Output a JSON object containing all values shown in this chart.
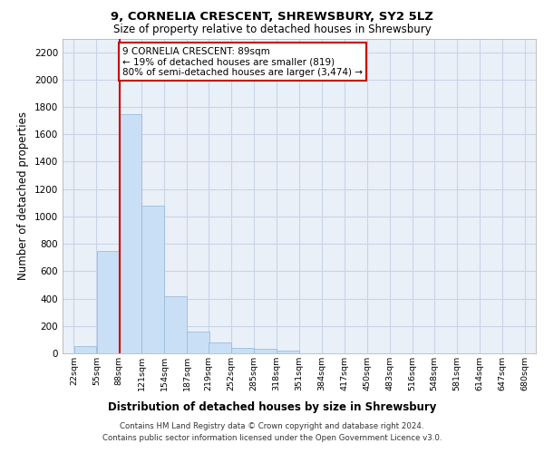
{
  "title": "9, CORNELIA CRESCENT, SHREWSBURY, SY2 5LZ",
  "subtitle": "Size of property relative to detached houses in Shrewsbury",
  "xlabel": "Distribution of detached houses by size in Shrewsbury",
  "ylabel": "Number of detached properties",
  "bar_color": "#c9dff5",
  "bar_edge_color": "#9bbcdc",
  "grid_color": "#c8d4e8",
  "background_color": "#eaf0f8",
  "property_line_x": 89,
  "annotation_text": "9 CORNELIA CRESCENT: 89sqm\n← 19% of detached houses are smaller (819)\n80% of semi-detached houses are larger (3,474) →",
  "annotation_box_color": "#ffffff",
  "annotation_box_edge_color": "#cc0000",
  "footer_line1": "Contains HM Land Registry data © Crown copyright and database right 2024.",
  "footer_line2": "Contains public sector information licensed under the Open Government Licence v3.0.",
  "bin_edges": [
    22,
    55,
    88,
    121,
    154,
    187,
    219,
    252,
    285,
    318,
    351,
    384,
    417,
    450,
    483,
    516,
    548,
    581,
    614,
    647,
    680
  ],
  "bar_heights": [
    50,
    750,
    1750,
    1080,
    420,
    160,
    80,
    40,
    30,
    20,
    0,
    0,
    0,
    0,
    0,
    0,
    0,
    0,
    0,
    0
  ],
  "ylim": [
    0,
    2300
  ],
  "yticks": [
    0,
    200,
    400,
    600,
    800,
    1000,
    1200,
    1400,
    1600,
    1800,
    2000,
    2200
  ]
}
